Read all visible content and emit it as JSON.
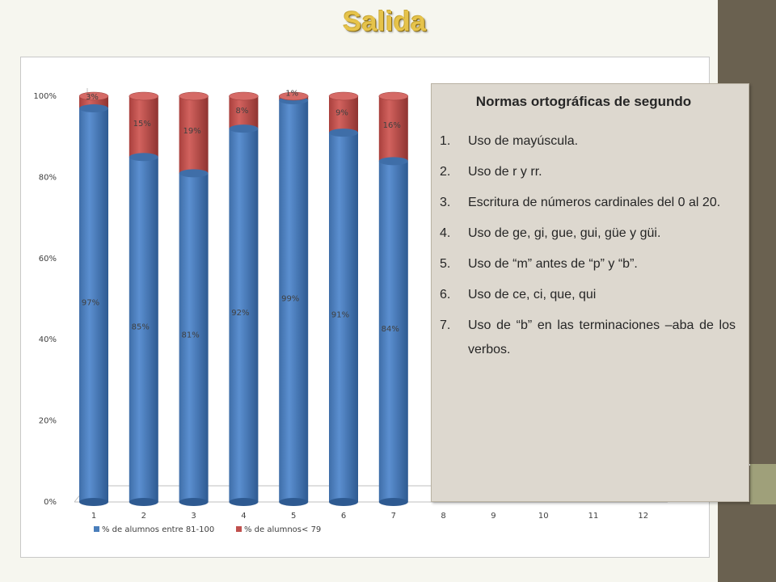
{
  "slide": {
    "title": "Salida"
  },
  "colors": {
    "series_blue": "#4a7ebb",
    "series_red": "#c0504d",
    "sidebar": "#6a6150",
    "sidebar_accent": "#9fa07a",
    "title": "#e6c34a",
    "info_bg": "#ddd8cf"
  },
  "info": {
    "heading": "Normas ortográficas de segundo",
    "items": [
      {
        "num": "1.",
        "text": "Uso de mayúscula."
      },
      {
        "num": "2.",
        "text": "Uso de r y rr."
      },
      {
        "num": "3.",
        "text": "Escritura de números cardinales del 0 al 20."
      },
      {
        "num": "4.",
        "text": "Uso de ge, gi, gue, gui, güe y güi."
      },
      {
        "num": "5.",
        "text": "Uso de “m” antes de “p” y “b”."
      },
      {
        "num": "6.",
        "text": "Uso de ce, ci, que, qui"
      },
      {
        "num": "7.",
        "text": "Uso de “b” en las terminaciones –aba de los verbos."
      }
    ]
  },
  "chart_data": {
    "type": "bar",
    "stacked": true,
    "percent_stacked": true,
    "style": "3d-cylinder",
    "categories": [
      "1",
      "2",
      "3",
      "4",
      "5",
      "6",
      "7",
      "8",
      "9",
      "10",
      "11",
      "12"
    ],
    "series": [
      {
        "name": "% de alumnos entre 81-100",
        "color": "#4a7ebb",
        "values": [
          97,
          85,
          81,
          92,
          99,
          91,
          84,
          null,
          null,
          null,
          null,
          null
        ],
        "labels": [
          "97%",
          "85%",
          "81%",
          "92%",
          "99%",
          "91%",
          "84%",
          "",
          "",
          "",
          "",
          ""
        ]
      },
      {
        "name": "% de alumnos< 79",
        "color": "#c0504d",
        "values": [
          3,
          15,
          19,
          8,
          1,
          9,
          16,
          null,
          null,
          null,
          null,
          null
        ],
        "labels": [
          "3%",
          "15%",
          "19%",
          "8%",
          "1%",
          "9%",
          "16%",
          "",
          "",
          "",
          "",
          ""
        ]
      }
    ],
    "y_ticks": [
      "0%",
      "20%",
      "40%",
      "60%",
      "80%",
      "100%"
    ],
    "ylim": [
      0,
      100
    ],
    "grid": false,
    "legend_position": "bottom-left"
  }
}
